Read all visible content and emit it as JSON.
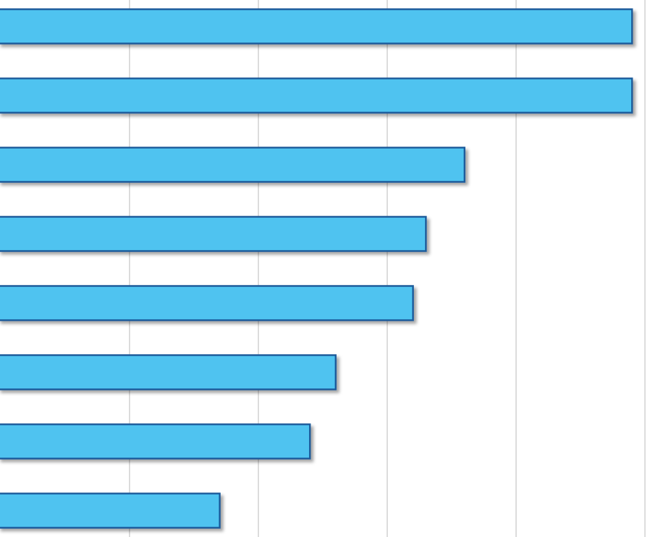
{
  "chart_data": {
    "type": "barh",
    "categories": [
      null,
      null,
      null,
      null,
      null,
      null,
      null,
      null
    ],
    "values": [
      4.9,
      4.9,
      3.6,
      3.3,
      3.2,
      2.6,
      2.4,
      1.7
    ],
    "color": "#4fc3f0",
    "edge_color": "#1a5a9a",
    "xlim": [
      0,
      5
    ],
    "xticks": [
      1,
      2,
      3,
      4,
      5
    ],
    "grid": true
  }
}
